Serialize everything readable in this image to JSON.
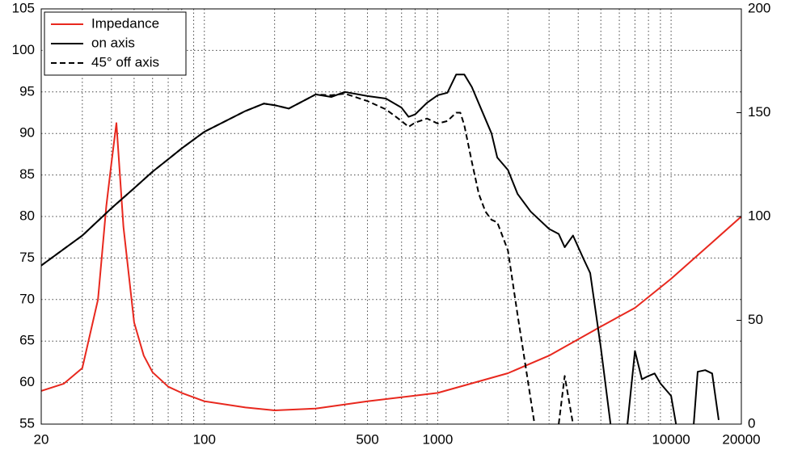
{
  "chart_data": {
    "type": "line",
    "xscale": "log",
    "grid": true,
    "legend": "upper left",
    "xlim": [
      20,
      20000
    ],
    "xticks": [
      20,
      100,
      500,
      1000,
      10000,
      20000
    ],
    "xgrid": [
      30,
      40,
      50,
      60,
      70,
      80,
      90,
      200,
      300,
      400,
      600,
      700,
      800,
      900,
      2000,
      3000,
      4000,
      5000,
      6000,
      7000,
      8000,
      9000
    ],
    "ylim": [
      55,
      105
    ],
    "yticks": [
      55,
      60,
      65,
      70,
      75,
      80,
      85,
      90,
      95,
      100,
      105
    ],
    "y2lim": [
      0,
      200
    ],
    "y2ticks": [
      0,
      50,
      100,
      150,
      200
    ],
    "series": [
      {
        "name": "Impedance",
        "color": "#e8281e",
        "axis": "y2",
        "dash": false,
        "x": [
          20,
          25,
          30,
          35,
          38,
          40,
          42,
          45,
          50,
          55,
          60,
          70,
          80,
          100,
          150,
          200,
          300,
          500,
          1000,
          2000,
          3000,
          5000,
          7000,
          10000,
          15000,
          20000
        ],
        "values": [
          16,
          19.5,
          27,
          60,
          105,
          126,
          145,
          95,
          49,
          33,
          25,
          18,
          15,
          11,
          8,
          6.6,
          7.5,
          11,
          15,
          24.5,
          33,
          47,
          56,
          70,
          87.5,
          100
        ]
      },
      {
        "name": "on axis",
        "color": "#000000",
        "dash": false,
        "x": [
          20,
          30,
          40,
          50,
          60,
          70,
          80,
          100,
          150,
          180,
          200,
          230,
          300,
          350,
          400,
          500,
          600,
          700,
          750,
          800,
          900,
          1000,
          1100,
          1200,
          1300,
          1400,
          1500,
          1700,
          1800,
          2000,
          2200,
          2500,
          3000,
          3300,
          3500,
          3800,
          4200,
          4500,
          5000,
          5500,
          6000,
          6500,
          7000,
          7500,
          8000,
          8500,
          9000,
          10000,
          10500,
          11500,
          12500,
          13000,
          14000,
          15000,
          16000
        ],
        "values": [
          74.1,
          77.7,
          81,
          83.4,
          85.4,
          86.9,
          88.2,
          90.2,
          92.7,
          93.6,
          93.4,
          93,
          94.7,
          94.4,
          95,
          94.5,
          94.2,
          93.1,
          92,
          92.3,
          93.7,
          94.6,
          94.9,
          97.1,
          97.1,
          95.6,
          93.6,
          90,
          87.1,
          85.6,
          82.7,
          80.6,
          78.5,
          77.9,
          76.3,
          77.7,
          75,
          73.2,
          64.2,
          55,
          null,
          55,
          63.8,
          60.4,
          60.8,
          61.1,
          59.9,
          58.4,
          55,
          null,
          55,
          61.3,
          61.5,
          61.1,
          55.5
        ]
      },
      {
        "name": "45° off axis",
        "color": "#000000",
        "dash": true,
        "x": [
          20,
          30,
          40,
          50,
          60,
          70,
          80,
          100,
          150,
          180,
          200,
          230,
          300,
          350,
          400,
          500,
          600,
          700,
          750,
          800,
          900,
          1000,
          1100,
          1200,
          1250,
          1300,
          1400,
          1500,
          1600,
          1700,
          1800,
          2000,
          2200,
          2400,
          2600,
          3000,
          3300,
          3500,
          3800
        ],
        "values": [
          74.1,
          77.7,
          81,
          83.4,
          85.4,
          86.9,
          88.2,
          90.2,
          92.7,
          93.6,
          93.4,
          93,
          94.7,
          94.6,
          94.8,
          93.9,
          92.9,
          91.5,
          90.8,
          91.3,
          91.8,
          91.2,
          91.5,
          92.5,
          92.5,
          91,
          86.6,
          82.7,
          80.6,
          79.6,
          79.3,
          75.9,
          68.1,
          61.3,
          55,
          null,
          55,
          60.8,
          55
        ]
      }
    ]
  }
}
